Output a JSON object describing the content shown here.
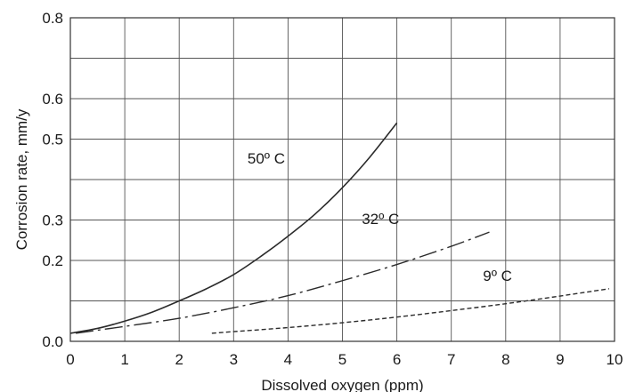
{
  "chart_data": {
    "type": "line",
    "title": "",
    "xlabel": "Dissolved oxygen (ppm)",
    "ylabel": "Corrosion rate, mm/y",
    "xlim": [
      0,
      10
    ],
    "ylim": [
      0,
      0.8
    ],
    "x_ticks": [
      0,
      1,
      2,
      3,
      4,
      5,
      6,
      7,
      8,
      9,
      10
    ],
    "x_tick_labels": [
      "0",
      "1",
      "2",
      "3",
      "4",
      "5",
      "6",
      "7",
      "8",
      "9",
      "10"
    ],
    "y_ticks": [
      0,
      0.1,
      0.2,
      0.3,
      0.4,
      0.5,
      0.6,
      0.7,
      0.8
    ],
    "y_tick_labels": [
      "0.0",
      "0.2",
      "0.3",
      "0.5",
      "0.6",
      "0.8"
    ],
    "y_tick_label_values": [
      0,
      0.2,
      0.3,
      0.5,
      0.6,
      0.8
    ],
    "grid": true,
    "legend": "none",
    "series": [
      {
        "name": "50º C",
        "line_style": "solid",
        "color": "#2b2b2b",
        "x": [
          0,
          0.5,
          1,
          1.5,
          2,
          2.5,
          3,
          3.5,
          4,
          4.5,
          5,
          5.5,
          6
        ],
        "y": [
          0.02,
          0.032,
          0.05,
          0.072,
          0.1,
          0.13,
          0.165,
          0.21,
          0.26,
          0.315,
          0.38,
          0.455,
          0.54
        ],
        "label_at": [
          3.6,
          0.44
        ]
      },
      {
        "name": "32º C",
        "line_style": "dash-dot",
        "color": "#2b2b2b",
        "x": [
          0.1,
          1,
          2,
          3,
          4,
          5,
          6,
          7,
          7.7
        ],
        "y": [
          0.02,
          0.037,
          0.057,
          0.083,
          0.113,
          0.15,
          0.19,
          0.235,
          0.27
        ],
        "label_at": [
          5.7,
          0.29
        ]
      },
      {
        "name": "9º C",
        "line_style": "dashed",
        "color": "#2b2b2b",
        "x": [
          2.6,
          3,
          4,
          5,
          6,
          7,
          8,
          9,
          9.9
        ],
        "y": [
          0.02,
          0.024,
          0.034,
          0.046,
          0.06,
          0.076,
          0.093,
          0.112,
          0.13
        ],
        "label_at": [
          7.85,
          0.15
        ]
      }
    ]
  }
}
